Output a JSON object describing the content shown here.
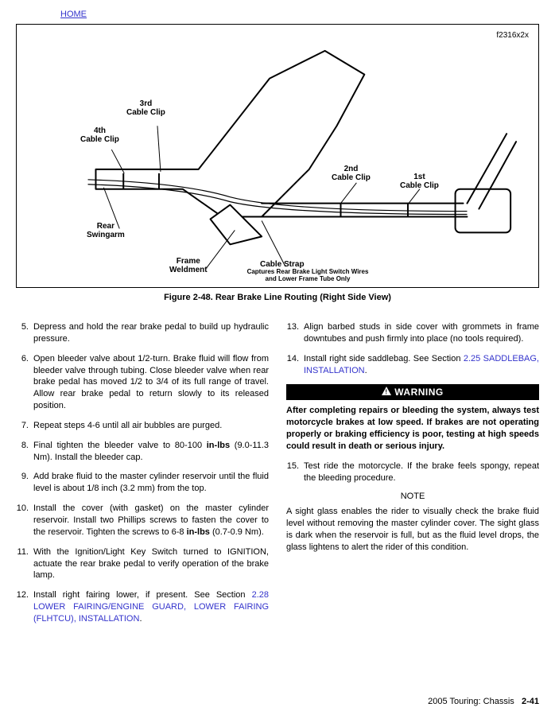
{
  "nav": {
    "home": "HOME"
  },
  "figure": {
    "code": "f2316x2x",
    "caption": "Figure 2-48. Rear Brake Line Routing (Right Side View)",
    "labels": {
      "clip3": "3rd\nCable Clip",
      "clip4": "4th\nCable Clip",
      "swingarm": "Rear\nSwingarm",
      "weldment": "Frame\nWeldment",
      "strap": "Cable Strap",
      "strap_sub": "Captures Rear Brake Light Switch Wires\nand Lower Frame Tube Only",
      "clip2": "2nd\nCable Clip",
      "clip1": "1st\nCable Clip"
    }
  },
  "left_steps": [
    {
      "n": "5.",
      "t": "Depress and hold the rear brake pedal to build up hydraulic pressure."
    },
    {
      "n": "6.",
      "t": "Open bleeder valve about 1/2-turn. Brake fluid will flow from bleeder valve through tubing. Close bleeder valve when rear brake pedal has moved 1/2 to 3/4 of its full range of travel. Allow rear brake pedal to return slowly to its released position."
    },
    {
      "n": "7.",
      "t": "Repeat steps 4-6 until all air bubbles are purged."
    },
    {
      "n": "8.",
      "t": "Final tighten the bleeder valve to 80-100 in-lbs (9.0-11.3 Nm). Install the bleeder cap."
    },
    {
      "n": "9.",
      "t": "Add brake fluid to the master cylinder reservoir until the fluid level is about 1/8 inch (3.2 mm) from the top."
    },
    {
      "n": "10.",
      "t": "Install the cover (with gasket) on the master cylinder reservoir. Install two Phillips screws to fasten the cover to the reservoir. Tighten the screws to 6-8 in-lbs (0.7-0.9 Nm)."
    },
    {
      "n": "11.",
      "t": "With the Ignition/Light Key Switch turned to IGNITION, actuate the rear brake pedal to verify operation of the brake lamp."
    },
    {
      "n": "12.",
      "t": "Install right fairing lower, if present. See Section ",
      "xref": "2.28 LOWER FAIRING/ENGINE GUARD, LOWER FAIRING (FLHTCU), INSTALLATION",
      "tail": "."
    }
  ],
  "right_steps_a": [
    {
      "n": "13.",
      "t": "Align barbed studs in side cover with grommets in frame downtubes and push firmly into place (no tools required)."
    },
    {
      "n": "14.",
      "t": "Install right side saddlebag. See Section ",
      "xref": "2.25 SADDLEBAG, INSTALLATION",
      "tail": "."
    }
  ],
  "warning": {
    "title": "WARNING",
    "body": "After completing repairs or bleeding the system, always test motorcycle brakes at low speed. If brakes are not operating properly or braking efficiency is poor, testing at high speeds could result in death or serious injury."
  },
  "right_steps_b": [
    {
      "n": "15.",
      "t": "Test ride the motorcycle. If the brake feels spongy, repeat the bleeding procedure."
    }
  ],
  "note": {
    "head": "NOTE",
    "body": "A sight glass enables the rider to visually check the brake fluid level without removing the master cylinder cover. The sight glass is dark when the reservoir is full, but as the fluid level drops, the glass lightens to alert the rider of this condition."
  },
  "footer": {
    "book": "2005 Touring: Chassis",
    "page": "2-41"
  },
  "colors": {
    "link": "#3333cc"
  }
}
